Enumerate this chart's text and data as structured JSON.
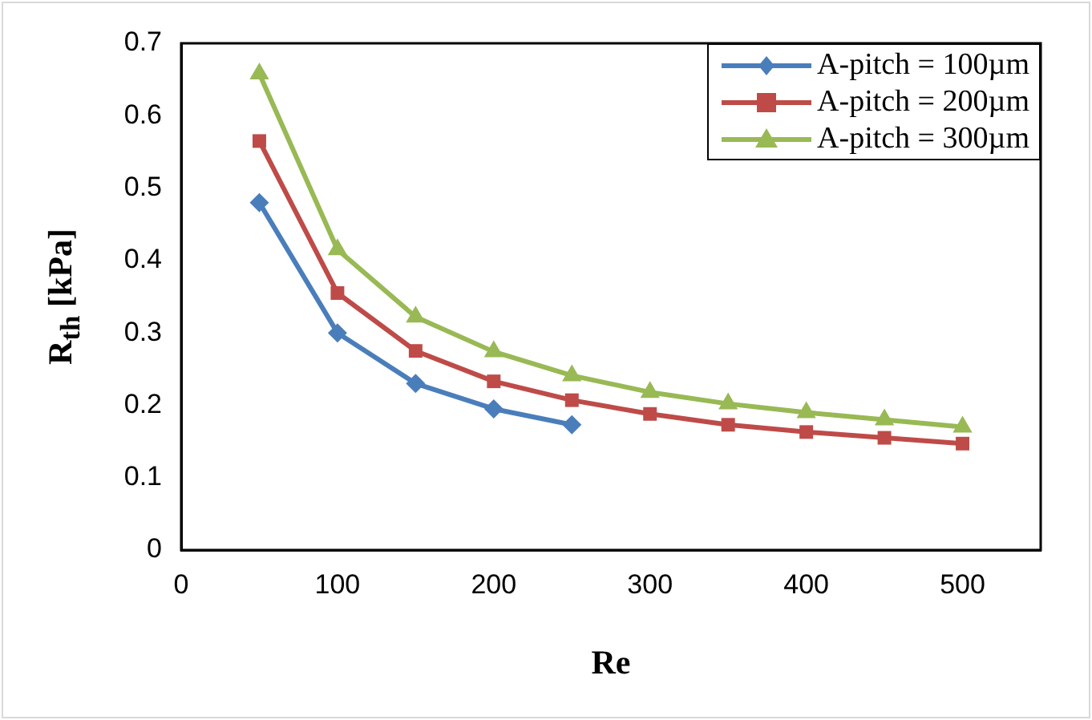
{
  "chart_data": {
    "type": "line",
    "xlabel": "Re",
    "ylabel": "R$_{th}$ [kPa]",
    "xlim": [
      0,
      550
    ],
    "xticks": [
      0,
      100,
      200,
      300,
      400,
      500
    ],
    "ylim": [
      0,
      0.7
    ],
    "yticks": [
      0,
      0.1,
      0.2,
      0.3,
      0.4,
      0.5,
      0.6,
      0.7
    ],
    "grid": false,
    "legend": "top right",
    "line_style": "solid",
    "series": [
      {
        "name": "A-pitch = 100µm",
        "color": "#4a7ebb",
        "marker": "diamond",
        "x": [
          50,
          100,
          150,
          200,
          250
        ],
        "values": [
          0.48,
          0.3,
          0.23,
          0.195,
          0.173
        ]
      },
      {
        "name": "A-pitch = 200µm",
        "color": "#be4b48",
        "marker": "square",
        "x": [
          50,
          100,
          150,
          200,
          250,
          300,
          350,
          400,
          450,
          500
        ],
        "values": [
          0.565,
          0.355,
          0.275,
          0.233,
          0.207,
          0.188,
          0.173,
          0.163,
          0.155,
          0.147
        ]
      },
      {
        "name": "A-pitch = 300µm",
        "color": "#98b954",
        "marker": "triangle",
        "x": [
          50,
          100,
          150,
          200,
          250,
          300,
          350,
          400,
          450,
          500
        ],
        "values": [
          0.658,
          0.415,
          0.322,
          0.274,
          0.241,
          0.218,
          0.202,
          0.19,
          0.18,
          0.17
        ]
      }
    ]
  }
}
